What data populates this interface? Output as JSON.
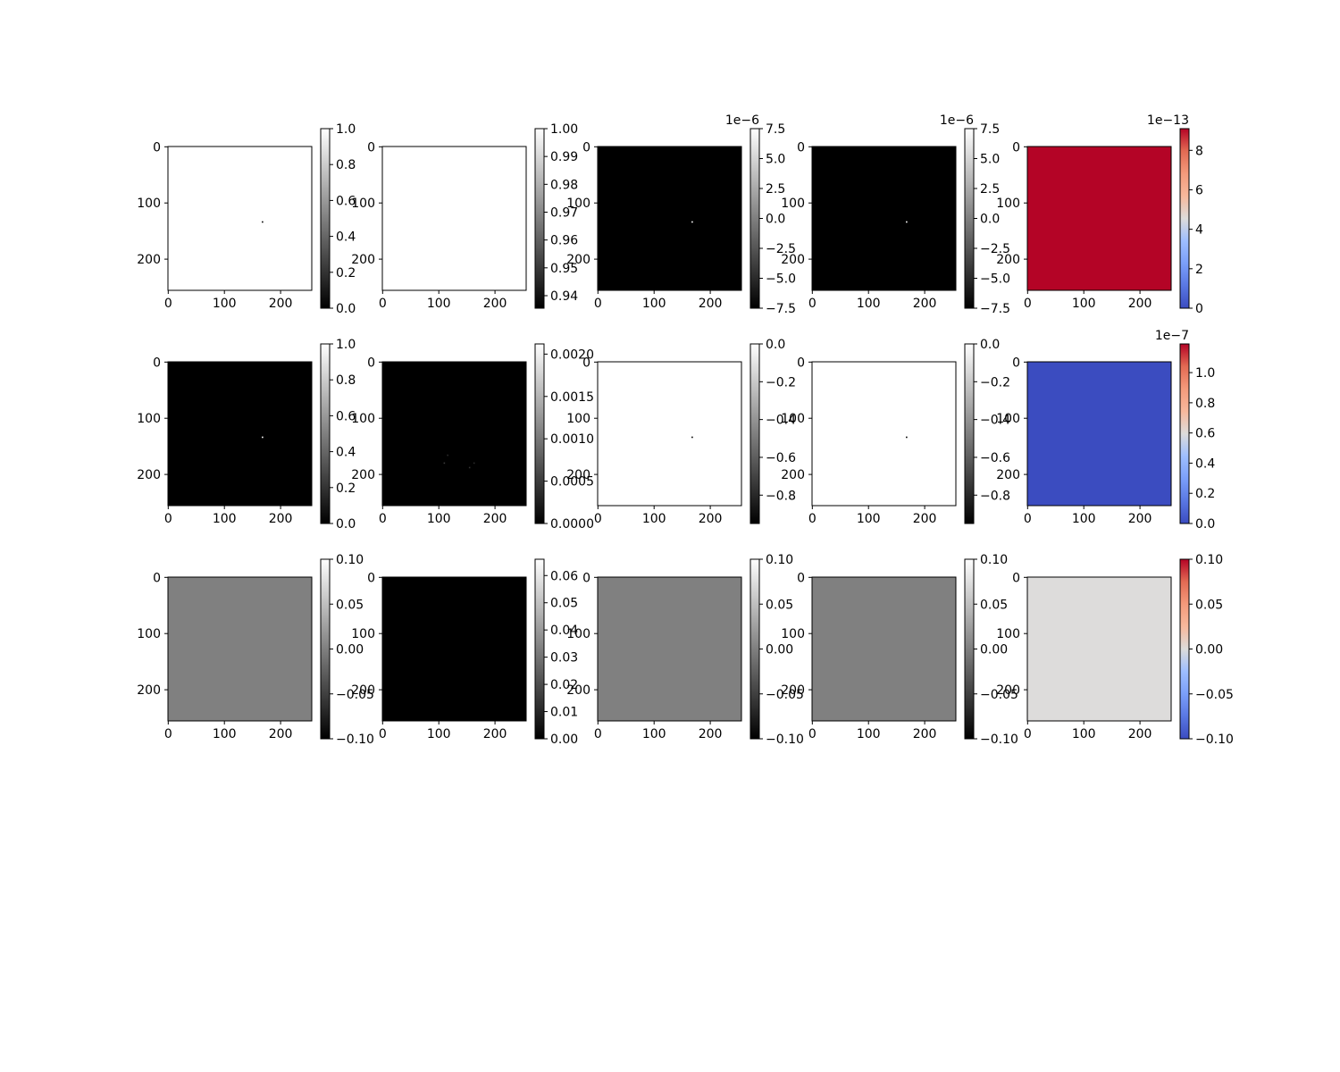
{
  "chart_data": [
    {
      "type": "heatmap",
      "cmap": "gray",
      "image_fill": "#ffffff",
      "xticks": [
        0,
        100,
        200
      ],
      "yticks": [
        0,
        100,
        200
      ],
      "colorbar": {
        "ticks": [
          "0.0",
          "0.2",
          "0.4",
          "0.6",
          "0.8",
          "1.0"
        ],
        "vmin": 0,
        "vmax": 1,
        "exponent": ""
      },
      "specks": [
        [
          168,
          134,
          "#000000"
        ]
      ]
    },
    {
      "type": "heatmap",
      "cmap": "gray",
      "image_fill": "#ffffff",
      "xticks": [
        0,
        100,
        200
      ],
      "yticks": [
        0,
        100,
        200
      ],
      "colorbar": {
        "ticks": [
          "0.94",
          "0.95",
          "0.96",
          "0.97",
          "0.98",
          "0.99",
          "1.00"
        ],
        "vmin": 0.9355,
        "vmax": 1,
        "exponent": ""
      },
      "specks": []
    },
    {
      "type": "heatmap",
      "cmap": "gray",
      "image_fill": "#000000",
      "xticks": [
        0,
        100,
        200
      ],
      "yticks": [
        0,
        100,
        200
      ],
      "colorbar": {
        "ticks": [
          "−7.5",
          "−5.0",
          "−2.5",
          "0.0",
          "2.5",
          "5.0",
          "7.5"
        ],
        "vmin": -7.5,
        "vmax": 7.5,
        "exponent": "1e−6"
      },
      "specks": [
        [
          168,
          134,
          "#ffffff"
        ]
      ]
    },
    {
      "type": "heatmap",
      "cmap": "gray",
      "image_fill": "#000000",
      "xticks": [
        0,
        100,
        200
      ],
      "yticks": [
        0,
        100,
        200
      ],
      "colorbar": {
        "ticks": [
          "−7.5",
          "−5.0",
          "−2.5",
          "0.0",
          "2.5",
          "5.0",
          "7.5"
        ],
        "vmin": -7.5,
        "vmax": 7.5,
        "exponent": "1e−6"
      },
      "specks": [
        [
          168,
          134,
          "#ffffff"
        ]
      ]
    },
    {
      "type": "heatmap",
      "cmap": "coolwarm",
      "image_fill": "#b40426",
      "xticks": [
        0,
        100,
        200
      ],
      "yticks": [
        0,
        100,
        200
      ],
      "colorbar": {
        "ticks": [
          "0",
          "2",
          "4",
          "6",
          "8"
        ],
        "vmin": 0,
        "vmax": 9.1,
        "exponent": "1e−13"
      },
      "specks": []
    },
    {
      "type": "heatmap",
      "cmap": "gray",
      "image_fill": "#000000",
      "xticks": [
        0,
        100,
        200
      ],
      "yticks": [
        0,
        100,
        200
      ],
      "colorbar": {
        "ticks": [
          "0.0",
          "0.2",
          "0.4",
          "0.6",
          "0.8",
          "1.0"
        ],
        "vmin": 0,
        "vmax": 1,
        "exponent": ""
      },
      "specks": [
        [
          168,
          134,
          "#ffffff"
        ]
      ]
    },
    {
      "type": "heatmap",
      "cmap": "gray",
      "image_fill": "#000000",
      "xticks": [
        0,
        100,
        200
      ],
      "yticks": [
        0,
        100,
        200
      ],
      "colorbar": {
        "ticks": [
          "0.0000",
          "0.0005",
          "0.0010",
          "0.0015",
          "0.0020"
        ],
        "vmin": 0,
        "vmax": 0.00212,
        "exponent": ""
      },
      "specks": [
        [
          110,
          180,
          "#3a3a3a"
        ],
        [
          116,
          166,
          "#2a2a2a"
        ],
        [
          155,
          188,
          "#333333"
        ],
        [
          163,
          180,
          "#2a2a2a"
        ]
      ]
    },
    {
      "type": "heatmap",
      "cmap": "gray",
      "image_fill": "#ffffff",
      "xticks": [
        0,
        100,
        200
      ],
      "yticks": [
        0,
        100,
        200
      ],
      "colorbar": {
        "ticks": [
          "−0.8",
          "−0.6",
          "−0.4",
          "−0.2",
          "0.0"
        ],
        "vmin": -0.95,
        "vmax": 0,
        "exponent": ""
      },
      "specks": [
        [
          168,
          134,
          "#000000"
        ]
      ]
    },
    {
      "type": "heatmap",
      "cmap": "gray",
      "image_fill": "#ffffff",
      "xticks": [
        0,
        100,
        200
      ],
      "yticks": [
        0,
        100,
        200
      ],
      "colorbar": {
        "ticks": [
          "−0.8",
          "−0.6",
          "−0.4",
          "−0.2",
          "0.0"
        ],
        "vmin": -0.95,
        "vmax": 0,
        "exponent": ""
      },
      "specks": [
        [
          168,
          134,
          "#000000"
        ]
      ]
    },
    {
      "type": "heatmap",
      "cmap": "coolwarm",
      "image_fill": "#3b4cc0",
      "xticks": [
        0,
        100,
        200
      ],
      "yticks": [
        0,
        100,
        200
      ],
      "colorbar": {
        "ticks": [
          "0.0",
          "0.2",
          "0.4",
          "0.6",
          "0.8",
          "1.0"
        ],
        "vmin": 0,
        "vmax": 1.19,
        "exponent": "1e−7"
      },
      "specks": []
    },
    {
      "type": "heatmap",
      "cmap": "gray",
      "image_fill": "#808080",
      "xticks": [
        0,
        100,
        200
      ],
      "yticks": [
        0,
        100,
        200
      ],
      "colorbar": {
        "ticks": [
          "−0.10",
          "−0.05",
          "0.00",
          "0.05",
          "0.10"
        ],
        "vmin": -0.1,
        "vmax": 0.1,
        "exponent": ""
      },
      "specks": []
    },
    {
      "type": "heatmap",
      "cmap": "gray",
      "image_fill": "#000000",
      "xticks": [
        0,
        100,
        200
      ],
      "yticks": [
        0,
        100,
        200
      ],
      "colorbar": {
        "ticks": [
          "0.00",
          "0.01",
          "0.02",
          "0.03",
          "0.04",
          "0.05",
          "0.06"
        ],
        "vmin": 0,
        "vmax": 0.066,
        "exponent": ""
      },
      "specks": []
    },
    {
      "type": "heatmap",
      "cmap": "gray",
      "image_fill": "#808080",
      "xticks": [
        0,
        100,
        200
      ],
      "yticks": [
        0,
        100,
        200
      ],
      "colorbar": {
        "ticks": [
          "−0.10",
          "−0.05",
          "0.00",
          "0.05",
          "0.10"
        ],
        "vmin": -0.1,
        "vmax": 0.1,
        "exponent": ""
      },
      "specks": []
    },
    {
      "type": "heatmap",
      "cmap": "gray",
      "image_fill": "#808080",
      "xticks": [
        0,
        100,
        200
      ],
      "yticks": [
        0,
        100,
        200
      ],
      "colorbar": {
        "ticks": [
          "−0.10",
          "−0.05",
          "0.00",
          "0.05",
          "0.10"
        ],
        "vmin": -0.1,
        "vmax": 0.1,
        "exponent": ""
      },
      "specks": []
    },
    {
      "type": "heatmap",
      "cmap": "coolwarm",
      "image_fill": "#dddcdb",
      "xticks": [
        0,
        100,
        200
      ],
      "yticks": [
        0,
        100,
        200
      ],
      "colorbar": {
        "ticks": [
          "−0.10",
          "−0.05",
          "0.00",
          "0.05",
          "0.10"
        ],
        "vmin": -0.1,
        "vmax": 0.1,
        "exponent": ""
      },
      "specks": []
    }
  ]
}
